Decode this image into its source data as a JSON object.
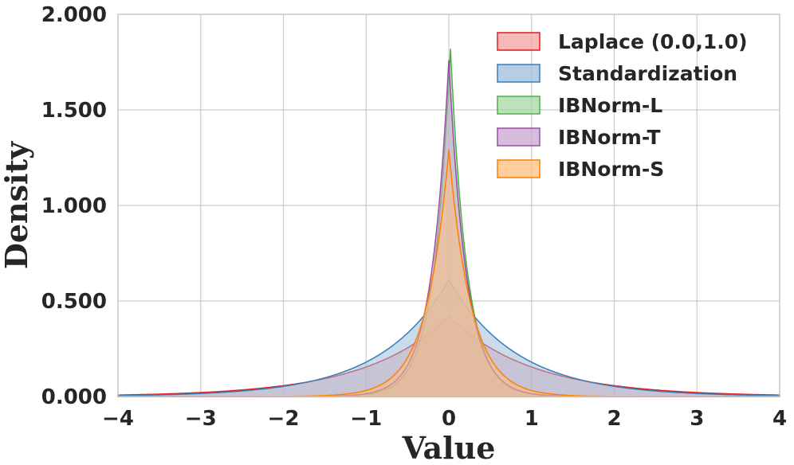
{
  "chart_data": {
    "type": "area",
    "title": "",
    "xlabel": "Value",
    "ylabel": "Density",
    "xlim": [
      -4,
      4
    ],
    "ylim": [
      0,
      2.0
    ],
    "grid": true,
    "legend_position": "top-right",
    "x_ticks": [
      {
        "value": -4,
        "label": "−4"
      },
      {
        "value": -3,
        "label": "−3"
      },
      {
        "value": -2,
        "label": "−2"
      },
      {
        "value": -1,
        "label": "−1"
      },
      {
        "value": 0,
        "label": "0"
      },
      {
        "value": 1,
        "label": "1"
      },
      {
        "value": 2,
        "label": "2"
      },
      {
        "value": 3,
        "label": "3"
      },
      {
        "value": 4,
        "label": "4"
      }
    ],
    "y_ticks": [
      {
        "value": 0,
        "label": "0.000"
      },
      {
        "value": 0.5,
        "label": "0.500"
      },
      {
        "value": 1.0,
        "label": "1.000"
      },
      {
        "value": 1.5,
        "label": "1.500"
      },
      {
        "value": 2.0,
        "label": "2.000"
      }
    ],
    "series": [
      {
        "name": "Laplace (0.0,1.0)",
        "color": "#e41a1c",
        "fill": "#f4a3a4",
        "distribution": "laplace",
        "loc": 0.0,
        "scale": 1.0,
        "peak_density": 0.42
      },
      {
        "name": "Standardization",
        "color": "#377eb8",
        "fill": "#9ebedc",
        "distribution": "laplace",
        "loc": 0.0,
        "scale": 0.82,
        "peak_density": 0.61
      },
      {
        "name": "IBNorm-L",
        "color": "#4daf4a",
        "fill": "#a6d7a4",
        "distribution": "laplace",
        "loc": 0.02,
        "scale": 0.2,
        "peak_density": 1.82
      },
      {
        "name": "IBNorm-T",
        "color": "#984ea3",
        "fill": "#c9a6d1",
        "distribution": "laplace",
        "loc": 0.0,
        "scale": 0.21,
        "peak_density": 1.76
      },
      {
        "name": "IBNorm-S",
        "color": "#ff7f00",
        "fill": "#ffbf80",
        "distribution": "laplace",
        "loc": 0.0,
        "scale": 0.27,
        "peak_density": 1.29
      }
    ]
  }
}
